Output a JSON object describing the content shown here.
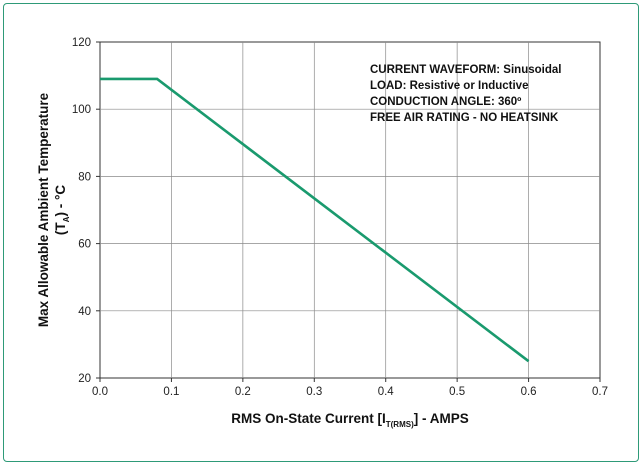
{
  "chart_data": {
    "type": "line",
    "title": "",
    "xlabel_parts": {
      "main": "RMS On-State Current [I",
      "sub": "T(RMS)",
      "end": "] - AMPS"
    },
    "ylabel_line1": "Max Allowable Ambient Temperature",
    "ylabel_line2_parts": {
      "main": "(T",
      "sub": "A",
      "end": ") - °C"
    },
    "xlim": [
      0.0,
      0.7
    ],
    "ylim": [
      20,
      120
    ],
    "x_ticks": [
      "0.0",
      "0.1",
      "0.2",
      "0.3",
      "0.4",
      "0.5",
      "0.6",
      "0.7"
    ],
    "y_ticks": [
      "20",
      "40",
      "60",
      "80",
      "100",
      "120"
    ],
    "grid": true,
    "series": [
      {
        "color": "#1a9a6e",
        "points": [
          [
            0.0,
            109
          ],
          [
            0.08,
            109
          ],
          [
            0.6,
            25
          ]
        ]
      }
    ],
    "annotations": [
      "CURRENT WAVEFORM: Sinusoidal",
      "LOAD: Resistive or Inductive",
      "CONDUCTION ANGLE: 360º",
      "FREE AIR RATING  - NO HEATSINK"
    ]
  }
}
